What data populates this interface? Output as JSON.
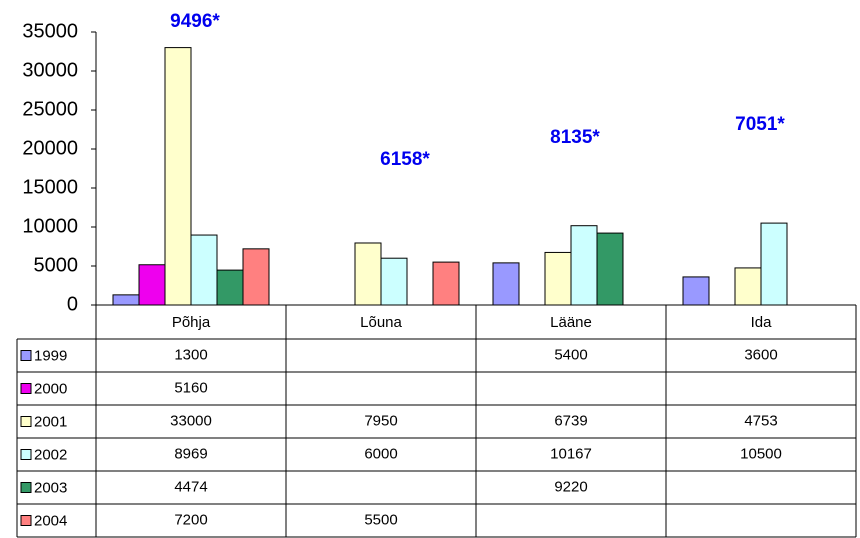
{
  "chart_data": {
    "type": "bar",
    "categories": [
      "Põhja",
      "Lõuna",
      "Lääne",
      "Ida"
    ],
    "series": [
      {
        "name": "1999",
        "color": "#9999ff",
        "values": [
          1300,
          null,
          5400,
          3600
        ]
      },
      {
        "name": "2000",
        "color": "#ee00ee",
        "values": [
          5160,
          null,
          null,
          null
        ]
      },
      {
        "name": "2001",
        "color": "#ffffcc",
        "values": [
          33000,
          7950,
          6739,
          4753
        ]
      },
      {
        "name": "2002",
        "color": "#ccffff",
        "values": [
          8969,
          6000,
          10167,
          10500
        ]
      },
      {
        "name": "2003",
        "color": "#339966",
        "values": [
          4474,
          null,
          9220,
          null
        ]
      },
      {
        "name": "2004",
        "color": "#ff8080",
        "values": [
          7200,
          5500,
          null,
          null
        ]
      }
    ],
    "annotations": [
      "9496*",
      "6158*",
      "8135*",
      "7051*"
    ],
    "ylim": [
      0,
      35000
    ],
    "yticks": [
      0,
      5000,
      10000,
      15000,
      20000,
      25000,
      30000,
      35000
    ],
    "data_table": true
  }
}
